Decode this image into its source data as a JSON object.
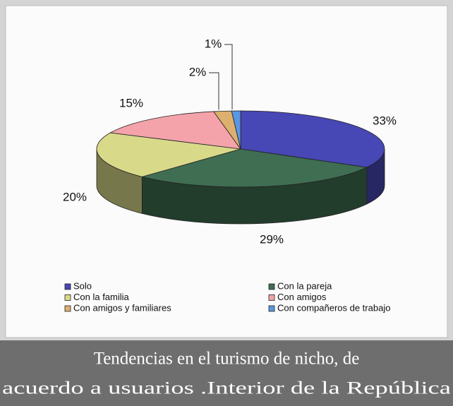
{
  "chart_data": {
    "type": "pie3d",
    "categories": [
      "Solo",
      "Con la pareja",
      "Con la familia",
      "Con amigos",
      "Con amigos y familiares",
      "Con compañeros de trabajo"
    ],
    "values": [
      33,
      29,
      20,
      15,
      2,
      1
    ],
    "value_labels": [
      "33%",
      "29%",
      "20%",
      "15%",
      "2%",
      "1%"
    ],
    "colors": [
      "#4747b5",
      "#3f6e52",
      "#d9d98a",
      "#f4a3ab",
      "#ddb06e",
      "#5b97e0"
    ],
    "legend": "bottom",
    "caption": [
      "Tendencias en el turismo de nicho, de",
      "acuerdo a usuarios .Interior de la República"
    ]
  }
}
